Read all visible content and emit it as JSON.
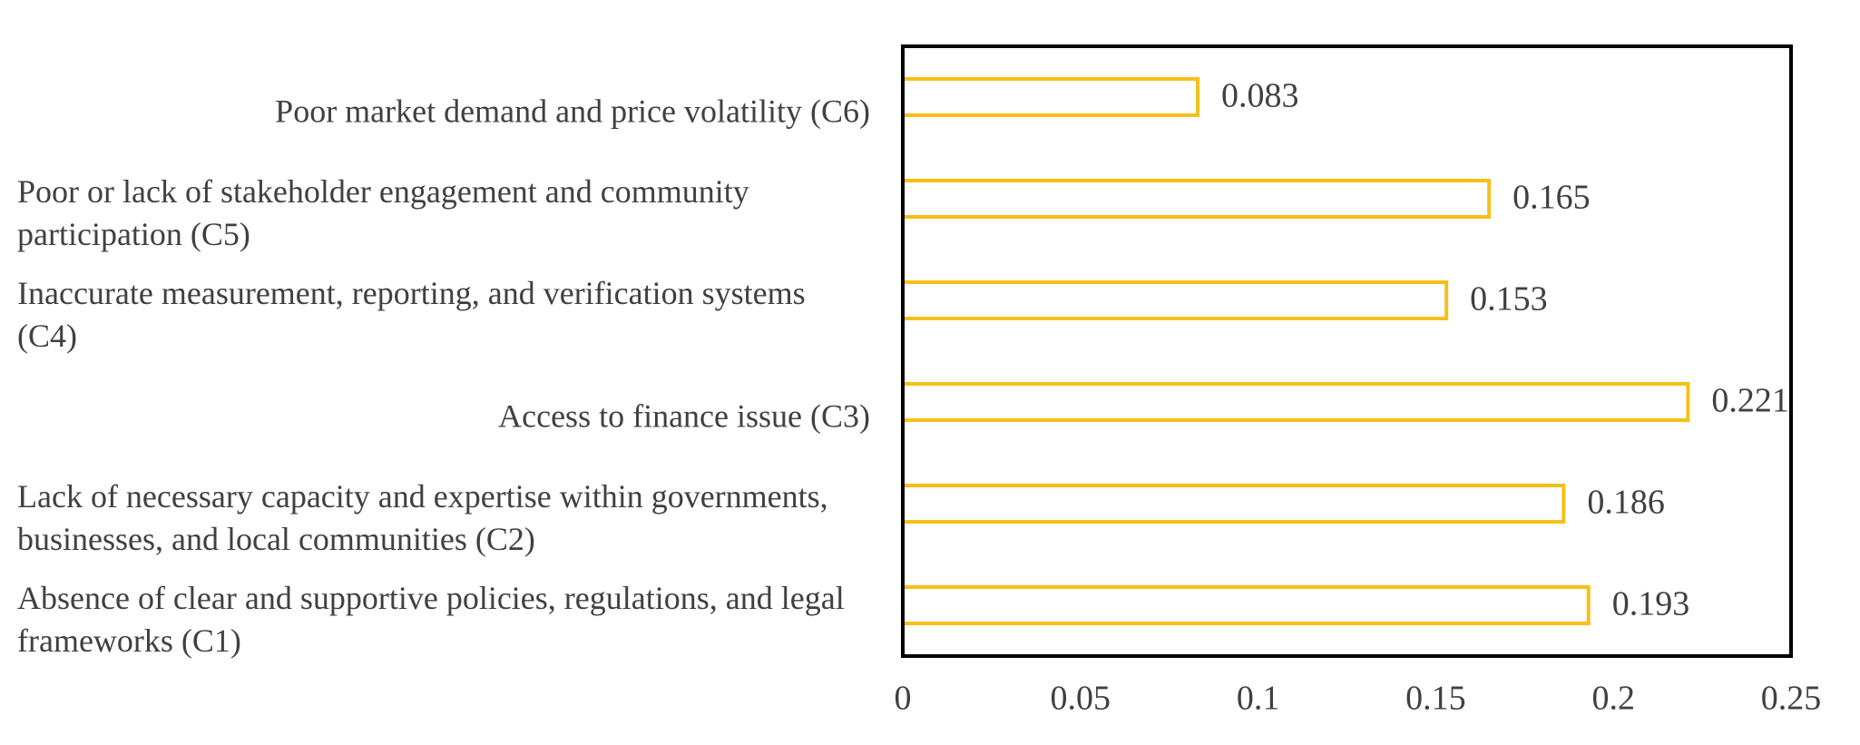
{
  "chart_data": {
    "type": "bar",
    "orientation": "horizontal",
    "categories": [
      "Absence of clear and supportive policies, regulations, and legal frameworks (C1)",
      "Lack of necessary capacity and expertise within governments, businesses, and local communities (C2)",
      "Access to finance issue (C3)",
      "Inaccurate measurement, reporting, and verification systems (C4)",
      "Poor or lack of stakeholder engagement and community participation (C5)",
      "Poor market demand and price volatility (C6)"
    ],
    "values": [
      0.193,
      0.186,
      0.221,
      0.153,
      0.165,
      0.083
    ],
    "color": "#f5c018",
    "xlim": [
      0,
      0.25
    ],
    "xticks": [
      0,
      0.05,
      0.1,
      0.15,
      0.2,
      0.25
    ]
  }
}
